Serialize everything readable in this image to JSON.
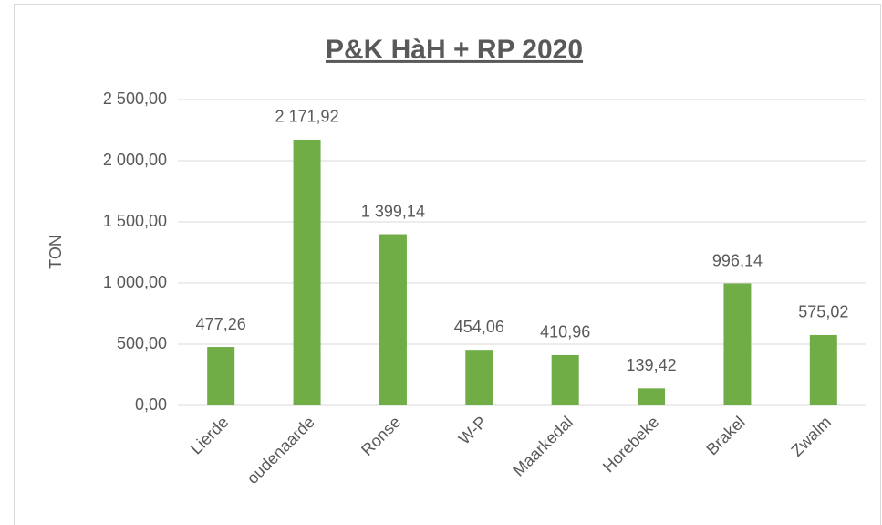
{
  "chart_data": {
    "type": "bar",
    "title": "P&K HàH + RP 2020",
    "ylabel": "TON",
    "categories": [
      "Lierde",
      "oudenaarde",
      "Ronse",
      "W-P",
      "Maarkedal",
      "Horebeke",
      "Brakel",
      "Zwalm"
    ],
    "values": [
      477.26,
      2171.92,
      1399.14,
      454.06,
      410.96,
      139.42,
      996.14,
      575.02
    ],
    "value_labels": [
      "477,26",
      "2 171,92",
      "1 399,14",
      "454,06",
      "410,96",
      "139,42",
      "996,14",
      "575,02"
    ],
    "color": "#70ad47",
    "ylim": [
      0,
      2500
    ],
    "yticks": [
      {
        "value": 0,
        "label": "0,00"
      },
      {
        "value": 500,
        "label": "500,00"
      },
      {
        "value": 1000,
        "label": "1 000,00"
      },
      {
        "value": 1500,
        "label": "1 500,00"
      },
      {
        "value": 2000,
        "label": "2 000,00"
      },
      {
        "value": 2500,
        "label": "2 500,00"
      }
    ],
    "grid": true
  }
}
